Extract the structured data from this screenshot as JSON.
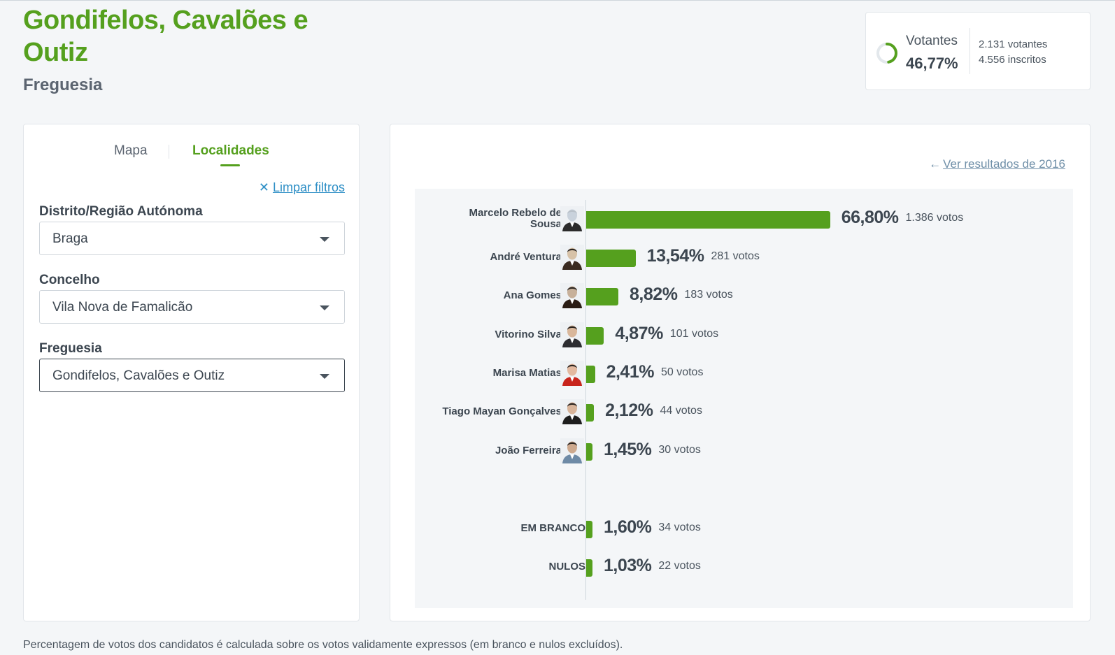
{
  "header": {
    "title": "Gondifelos, Cavalões e Outiz",
    "subtitle": "Freguesia"
  },
  "turnout": {
    "label": "Votantes",
    "percent": "46,77%",
    "percent_value": 46.77,
    "voters": "2.131 votantes",
    "registered": "4.556 inscritos"
  },
  "tabs": {
    "map": "Mapa",
    "localities": "Localidades"
  },
  "filters": {
    "clear_label": "Limpar filtros",
    "district_label": "Distrito/Região Autónoma",
    "district_value": "Braga",
    "municipality_label": "Concelho",
    "municipality_value": "Vila Nova de Famalicão",
    "parish_label": "Freguesia",
    "parish_value": "Gondifelos, Cavalões e Outiz"
  },
  "results": {
    "previous_link": "Ver resultados de 2016"
  },
  "chart_data": {
    "type": "bar",
    "orientation": "horizontal",
    "title": "",
    "categories": [
      "Marcelo Rebelo de Sousa",
      "André Ventura",
      "Ana Gomes",
      "Vitorino Silva",
      "Marisa Matias",
      "Tiago Mayan Gonçalves",
      "João Ferreira",
      "EM BRANCO",
      "NULOS"
    ],
    "values": [
      66.8,
      13.54,
      8.82,
      4.87,
      2.41,
      2.12,
      1.45,
      1.6,
      1.03
    ],
    "percent_labels": [
      "66,80%",
      "13,54%",
      "8,82%",
      "4,87%",
      "2,41%",
      "2,12%",
      "1,45%",
      "1,60%",
      "1,03%"
    ],
    "vote_labels": [
      "1.386 votos",
      "281 votos",
      "183 votos",
      "101 votos",
      "50 votos",
      "44 votos",
      "30 votos",
      "34 votos",
      "22 votos"
    ],
    "votes": [
      1386,
      281,
      183,
      101,
      50,
      44,
      30,
      34,
      22
    ],
    "xlim": [
      0,
      100
    ],
    "color": "#55a01e"
  },
  "footnote": "Percentagem de votos dos candidatos é calculada sobre os votos validamente expressos (em branco e nulos excluídos).",
  "colors": {
    "accent": "#55a01e",
    "link": "#2e8fc6"
  }
}
